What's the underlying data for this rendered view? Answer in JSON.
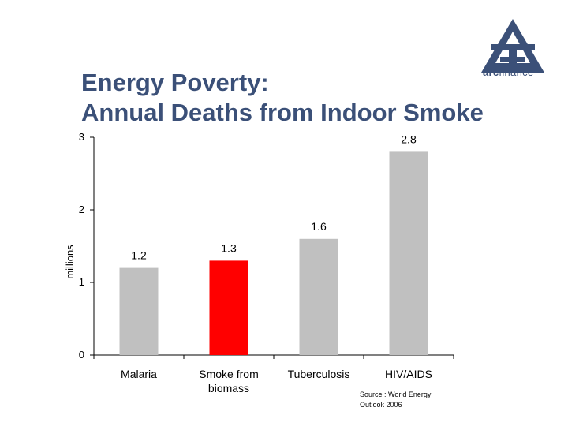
{
  "title_line1": "Energy Poverty:",
  "title_line2": "Annual Deaths from Indoor Smoke",
  "logo": {
    "text_bold": "arc",
    "text_rest": "finance",
    "icon": "arc-finance-triangle-logo",
    "color": "#3b5078"
  },
  "source_line1": "Source : World Energy",
  "source_line2": "Outlook 2006",
  "colors": {
    "bar": "#c0c0c0",
    "highlight": "#ff0000",
    "title": "#3b5078"
  },
  "chart_data": {
    "type": "bar",
    "categories": [
      "Malaria",
      "Smoke from biomass",
      "Tuberculosis",
      "HIV/AIDS"
    ],
    "category_lines": [
      [
        "Malaria"
      ],
      [
        "Smoke from",
        "biomass"
      ],
      [
        "Tuberculosis"
      ],
      [
        "HIV/AIDS"
      ]
    ],
    "values": [
      1.2,
      1.3,
      1.6,
      2.8
    ],
    "data_labels": [
      "1.2",
      "1.3",
      "1.6",
      "2.8"
    ],
    "highlight_index": 1,
    "ylabel": "millions",
    "xlabel": "",
    "ylim": [
      0,
      3
    ],
    "yticks": [
      0,
      1,
      2,
      3
    ],
    "grid": false
  }
}
